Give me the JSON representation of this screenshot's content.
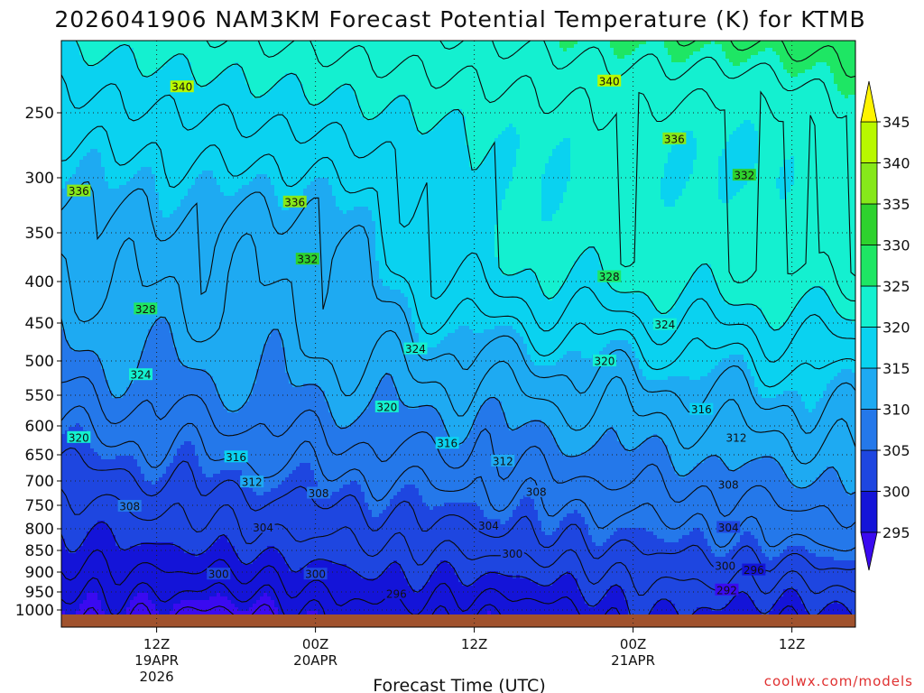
{
  "title": "2026041906 NAM3KM Forecast Potential Temperature (K) for KTMB",
  "xlabel": "Forecast Time (UTC)",
  "credit": "coolwx.com/models",
  "chart_data": {
    "type": "heatmap",
    "title": "2026041906 NAM3KM Forecast Potential Temperature (K) for KTMB",
    "xlabel": "Forecast Time (UTC)",
    "ylabel": "",
    "x_range_hours": [
      -6,
      44
    ],
    "y_range_hpa": [
      1000,
      200
    ],
    "y_ticks": [
      250,
      300,
      350,
      400,
      450,
      500,
      550,
      600,
      650,
      700,
      750,
      800,
      850,
      900,
      950,
      1000
    ],
    "x_ticks": [
      {
        "hour": 0,
        "lines": [
          "12Z",
          "19APR",
          "2026"
        ]
      },
      {
        "hour": 10,
        "lines": [
          "00Z",
          "20APR"
        ]
      },
      {
        "hour": 20,
        "lines": [
          "12Z"
        ]
      },
      {
        "hour": 30,
        "lines": [
          "00Z",
          "21APR"
        ]
      },
      {
        "hour": 40,
        "lines": [
          "12Z"
        ]
      }
    ],
    "grid": true,
    "colorbar": {
      "levels": [
        295,
        300,
        305,
        310,
        315,
        320,
        325,
        330,
        335,
        340,
        345
      ],
      "colors": [
        "#3a0af0",
        "#1414d8",
        "#1e46e0",
        "#2478ea",
        "#1eaaf2",
        "#0ad2f0",
        "#14f0d0",
        "#1ee664",
        "#2ed22e",
        "#86e81a",
        "#b8f800",
        "#fff400"
      ]
    },
    "isotherm_labels": [
      {
        "text": "340",
        "x": 1.6,
        "p": 232
      },
      {
        "text": "340",
        "x": 28.5,
        "p": 228
      },
      {
        "text": "336",
        "x": -4.9,
        "p": 312
      },
      {
        "text": "336",
        "x": 8.7,
        "p": 322
      },
      {
        "text": "336",
        "x": 32.6,
        "p": 270
      },
      {
        "text": "332",
        "x": 9.5,
        "p": 377
      },
      {
        "text": "332",
        "x": 37.0,
        "p": 298
      },
      {
        "text": "328",
        "x": -0.7,
        "p": 433
      },
      {
        "text": "328",
        "x": 28.5,
        "p": 395
      },
      {
        "text": "324",
        "x": -1.0,
        "p": 520
      },
      {
        "text": "324",
        "x": 16.3,
        "p": 484
      },
      {
        "text": "324",
        "x": 32.0,
        "p": 452
      },
      {
        "text": "320",
        "x": -4.9,
        "p": 620
      },
      {
        "text": "320",
        "x": 14.5,
        "p": 569
      },
      {
        "text": "320",
        "x": 28.2,
        "p": 500
      },
      {
        "text": "316",
        "x": 5.0,
        "p": 654
      },
      {
        "text": "316",
        "x": 18.3,
        "p": 630
      },
      {
        "text": "316",
        "x": 34.3,
        "p": 573
      },
      {
        "text": "312",
        "x": 6.0,
        "p": 702
      },
      {
        "text": "312",
        "x": 21.8,
        "p": 662
      },
      {
        "text": "312",
        "x": 36.5,
        "p": 620
      },
      {
        "text": "308",
        "x": -1.7,
        "p": 752
      },
      {
        "text": "308",
        "x": 10.2,
        "p": 725
      },
      {
        "text": "308",
        "x": 23.9,
        "p": 722
      },
      {
        "text": "308",
        "x": 36.0,
        "p": 707
      },
      {
        "text": "304",
        "x": 6.7,
        "p": 797
      },
      {
        "text": "304",
        "x": 20.9,
        "p": 793
      },
      {
        "text": "304",
        "x": 36.0,
        "p": 797
      },
      {
        "text": "300",
        "x": 3.9,
        "p": 905
      },
      {
        "text": "300",
        "x": 10.0,
        "p": 905
      },
      {
        "text": "300",
        "x": 22.4,
        "p": 857
      },
      {
        "text": "300",
        "x": 35.8,
        "p": 885
      },
      {
        "text": "296",
        "x": 15.1,
        "p": 955
      },
      {
        "text": "296",
        "x": 37.6,
        "p": 895
      },
      {
        "text": "292",
        "x": 35.9,
        "p": 945
      }
    ]
  }
}
